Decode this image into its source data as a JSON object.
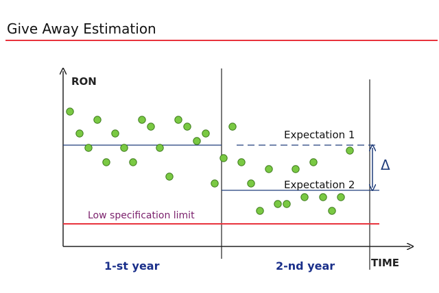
{
  "header": {
    "title": "Give Away Estimation"
  },
  "diagram": {
    "y_axis_label": "RON",
    "x_axis_label": "TIME",
    "period_labels": [
      "1-st year",
      "2-nd year"
    ],
    "expectation_1": "Expectation 1",
    "expectation_2": "Expectation 2",
    "delta_symbol": "Δ",
    "spec_limit_label": "Low specification limit"
  },
  "colors": {
    "title_rule": "#e8323c",
    "spec_line": "#e8323c",
    "spec_text": "#7a1f6b",
    "expectation_lines": "#1f3c7a",
    "period_text": "#1a2f8a",
    "dot_fill": "#7ac943",
    "dot_stroke": "#3d7a1c",
    "axis": "#222222"
  }
}
